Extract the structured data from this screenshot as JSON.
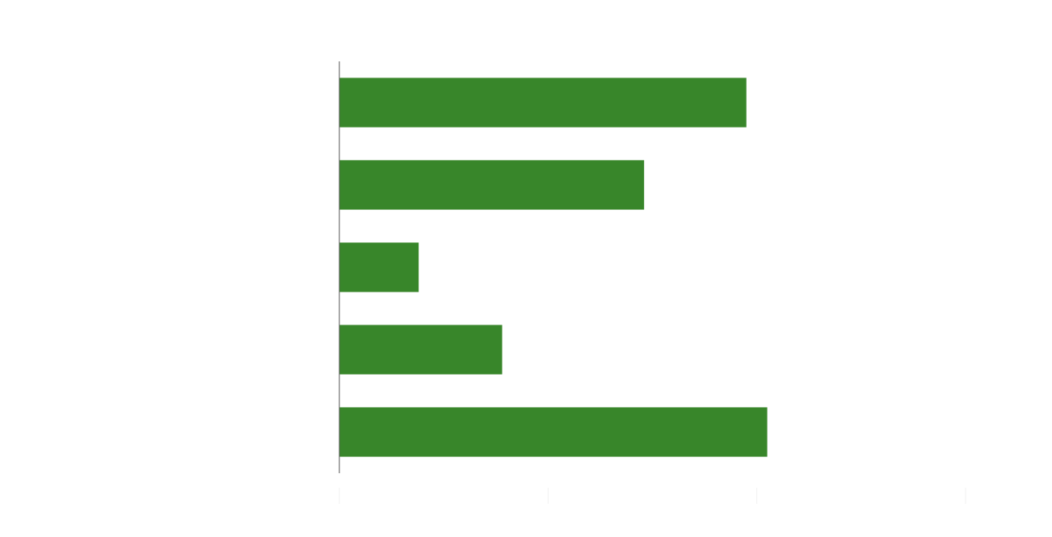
{
  "chart_data": {
    "type": "bar",
    "orientation": "horizontal",
    "title": "",
    "xlabel": "",
    "ylabel": "",
    "categories": [
      "",
      "",
      "",
      "",
      ""
    ],
    "values": [
      19.5,
      14.6,
      3.8,
      7.8,
      20.5
    ],
    "xlim": [
      0,
      30
    ],
    "bar_color": "#38862a",
    "axis_color": "#555555",
    "tick_color": "#f2f2f2",
    "grid": false,
    "legend": "none"
  }
}
